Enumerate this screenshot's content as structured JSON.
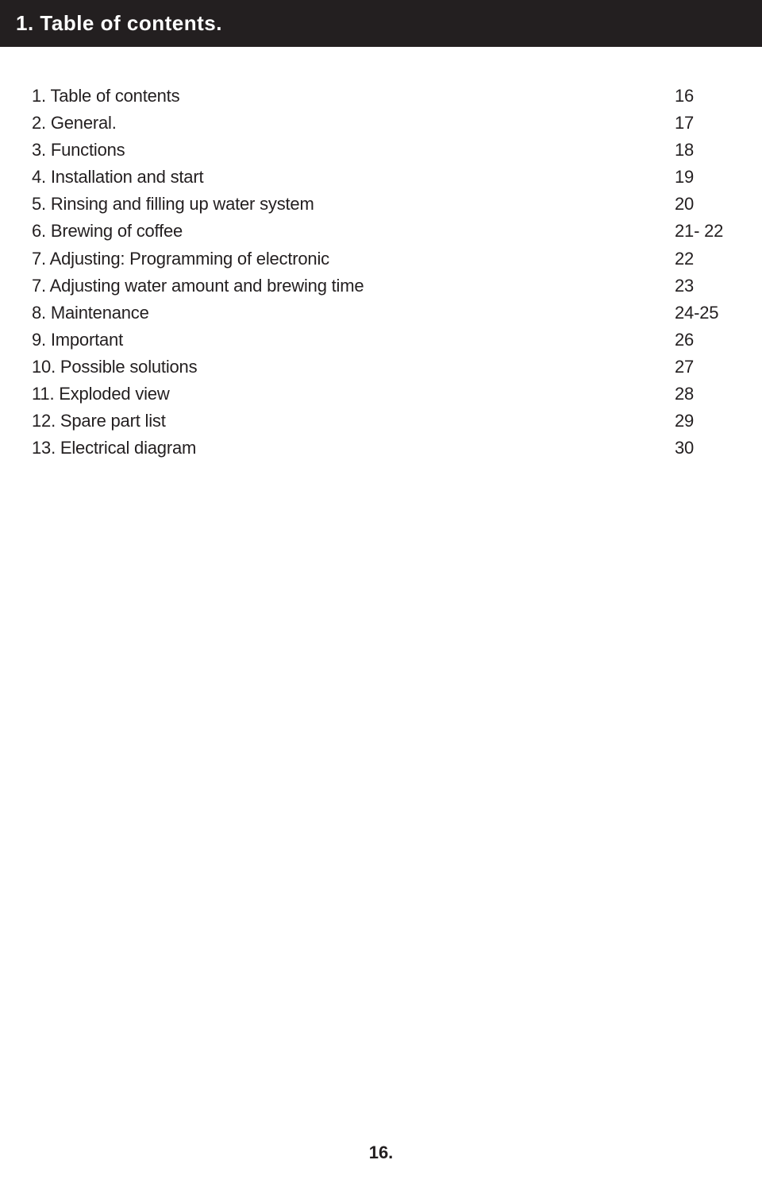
{
  "header": {
    "title": "1. Table of contents."
  },
  "toc": {
    "entries": [
      {
        "label": "1. Table of contents",
        "page": "16"
      },
      {
        "label": "2. General.",
        "page": "17"
      },
      {
        "label": "3. Functions",
        "page": "18"
      },
      {
        "label": "4. Installation and start",
        "page": "19"
      },
      {
        "label": "5. Rinsing and filling up water system",
        "page": "20"
      },
      {
        "label": "6. Brewing of coffee",
        "page": "21- 22"
      },
      {
        "label": "7. Adjusting: Programming of electronic",
        "page": "22"
      },
      {
        "label": "7. Adjusting water amount and brewing time",
        "page": "23"
      },
      {
        "label": "8. Maintenance",
        "page": "24-25"
      },
      {
        "label": "9. Important",
        "page": "26"
      },
      {
        "label": "10. Possible solutions",
        "page": "27"
      },
      {
        "label": "11. Exploded view",
        "page": "28"
      },
      {
        "label": "12. Spare part list",
        "page": "29"
      },
      {
        "label": "13. Electrical diagram",
        "page": "30"
      }
    ]
  },
  "footer": {
    "page_number": "16."
  }
}
